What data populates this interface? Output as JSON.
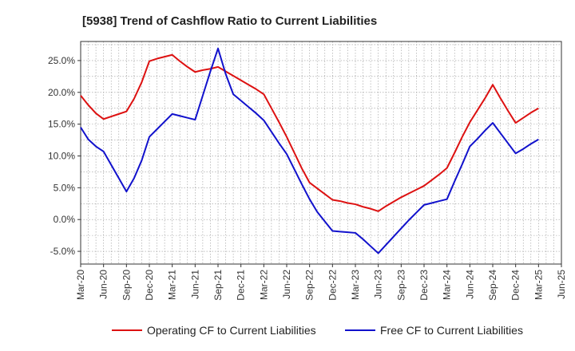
{
  "chart_data": {
    "type": "line",
    "title": "[5938]  Trend of Cashflow Ratio to Current Liabilities",
    "xlabel": "",
    "ylabel": "",
    "x_ticks": [
      "Mar-20",
      "Jun-20",
      "Sep-20",
      "Dec-20",
      "Mar-21",
      "Jun-21",
      "Sep-21",
      "Dec-21",
      "Mar-22",
      "Jun-22",
      "Sep-22",
      "Dec-22",
      "Mar-23",
      "Jun-23",
      "Sep-23",
      "Dec-23",
      "Mar-24",
      "Jun-24",
      "Sep-24",
      "Dec-24",
      "Mar-25",
      "Jun-25"
    ],
    "y_ticks": [
      "25.0%",
      "20.0%",
      "15.0%",
      "10.0%",
      "5.0%",
      "0.0%",
      "-5.0%"
    ],
    "y_tick_values": [
      25,
      20,
      15,
      10,
      5,
      0,
      -5
    ],
    "ylim": [
      -7,
      28
    ],
    "grid": true,
    "legend_position": "bottom",
    "series": [
      {
        "name": "Operating CF to Current Liabilities",
        "color": "#dd1111",
        "x": [
          "Mar-20",
          "Apr-20",
          "May-20",
          "Jun-20",
          "Jul-20",
          "Aug-20",
          "Sep-20",
          "Oct-20",
          "Nov-20",
          "Dec-20",
          "Jan-21",
          "Feb-21",
          "Mar-21",
          "Apr-21",
          "May-21",
          "Jun-21",
          "Jul-21",
          "Aug-21",
          "Sep-21",
          "Oct-21",
          "Nov-21",
          "Dec-21",
          "Jan-22",
          "Feb-22",
          "Mar-22",
          "Apr-22",
          "May-22",
          "Jun-22",
          "Jul-22",
          "Aug-22",
          "Sep-22",
          "Oct-22",
          "Nov-22",
          "Dec-22",
          "Jan-23",
          "Feb-23",
          "Mar-23",
          "Apr-23",
          "May-23",
          "Jun-23",
          "Jul-23",
          "Aug-23",
          "Sep-23",
          "Oct-23",
          "Nov-23",
          "Dec-23",
          "Jan-24",
          "Feb-24",
          "Mar-24",
          "Apr-24",
          "May-24",
          "Jun-24",
          "Jul-24",
          "Aug-24",
          "Sep-24",
          "Oct-24",
          "Nov-24",
          "Dec-24",
          "Jan-25",
          "Feb-25",
          "Mar-25"
        ],
        "values": [
          19.5,
          18.0,
          16.7,
          15.8,
          16.2,
          16.6,
          17.0,
          19.0,
          21.6,
          24.9,
          25.3,
          25.6,
          25.9,
          24.9,
          24.0,
          23.2,
          23.5,
          23.7,
          24.0,
          23.3,
          22.6,
          21.9,
          21.2,
          20.5,
          19.7,
          17.5,
          15.3,
          13.0,
          10.5,
          8.0,
          5.8,
          4.9,
          4.0,
          3.1,
          2.9,
          2.6,
          2.4,
          2.0,
          1.7,
          1.3,
          2.1,
          2.8,
          3.5,
          4.1,
          4.7,
          5.3,
          6.2,
          7.1,
          8.1,
          10.5,
          13.0,
          15.3,
          17.2,
          19.1,
          21.2,
          19.1,
          17.1,
          15.2,
          16.0,
          16.8,
          17.5
        ]
      },
      {
        "name": "Free CF to Current Liabilities",
        "color": "#1111cc",
        "x": [
          "Mar-20",
          "Apr-20",
          "May-20",
          "Jun-20",
          "Jul-20",
          "Aug-20",
          "Sep-20",
          "Oct-20",
          "Nov-20",
          "Dec-20",
          "Jan-21",
          "Feb-21",
          "Mar-21",
          "Apr-21",
          "May-21",
          "Jun-21",
          "Jul-21",
          "Aug-21",
          "Sep-21",
          "Oct-21",
          "Nov-21",
          "Dec-21",
          "Jan-22",
          "Feb-22",
          "Mar-22",
          "Apr-22",
          "May-22",
          "Jun-22",
          "Jul-22",
          "Aug-22",
          "Sep-22",
          "Oct-22",
          "Nov-22",
          "Dec-22",
          "Jan-23",
          "Feb-23",
          "Mar-23",
          "Apr-23",
          "May-23",
          "Jun-23",
          "Jul-23",
          "Aug-23",
          "Sep-23",
          "Oct-23",
          "Nov-23",
          "Dec-23",
          "Jan-24",
          "Feb-24",
          "Mar-24",
          "Apr-24",
          "May-24",
          "Jun-24",
          "Jul-24",
          "Aug-24",
          "Sep-24",
          "Oct-24",
          "Nov-24",
          "Dec-24",
          "Jan-25",
          "Feb-25",
          "Mar-25"
        ],
        "values": [
          14.5,
          12.6,
          11.5,
          10.7,
          8.6,
          6.5,
          4.4,
          6.5,
          9.3,
          13.0,
          14.2,
          15.4,
          16.6,
          16.3,
          16.0,
          15.7,
          19.5,
          23.3,
          26.9,
          22.9,
          19.7,
          18.7,
          17.7,
          16.7,
          15.6,
          13.8,
          12.0,
          10.3,
          7.9,
          5.5,
          3.2,
          1.2,
          -0.3,
          -1.8,
          -1.9,
          -2.0,
          -2.1,
          -3.1,
          -4.2,
          -5.3,
          -4.0,
          -2.7,
          -1.4,
          -0.1,
          1.1,
          2.3,
          2.6,
          2.9,
          3.2,
          6.0,
          8.7,
          11.5,
          12.7,
          14.0,
          15.2,
          13.6,
          12.0,
          10.4,
          11.1,
          11.9,
          12.6
        ]
      }
    ]
  }
}
